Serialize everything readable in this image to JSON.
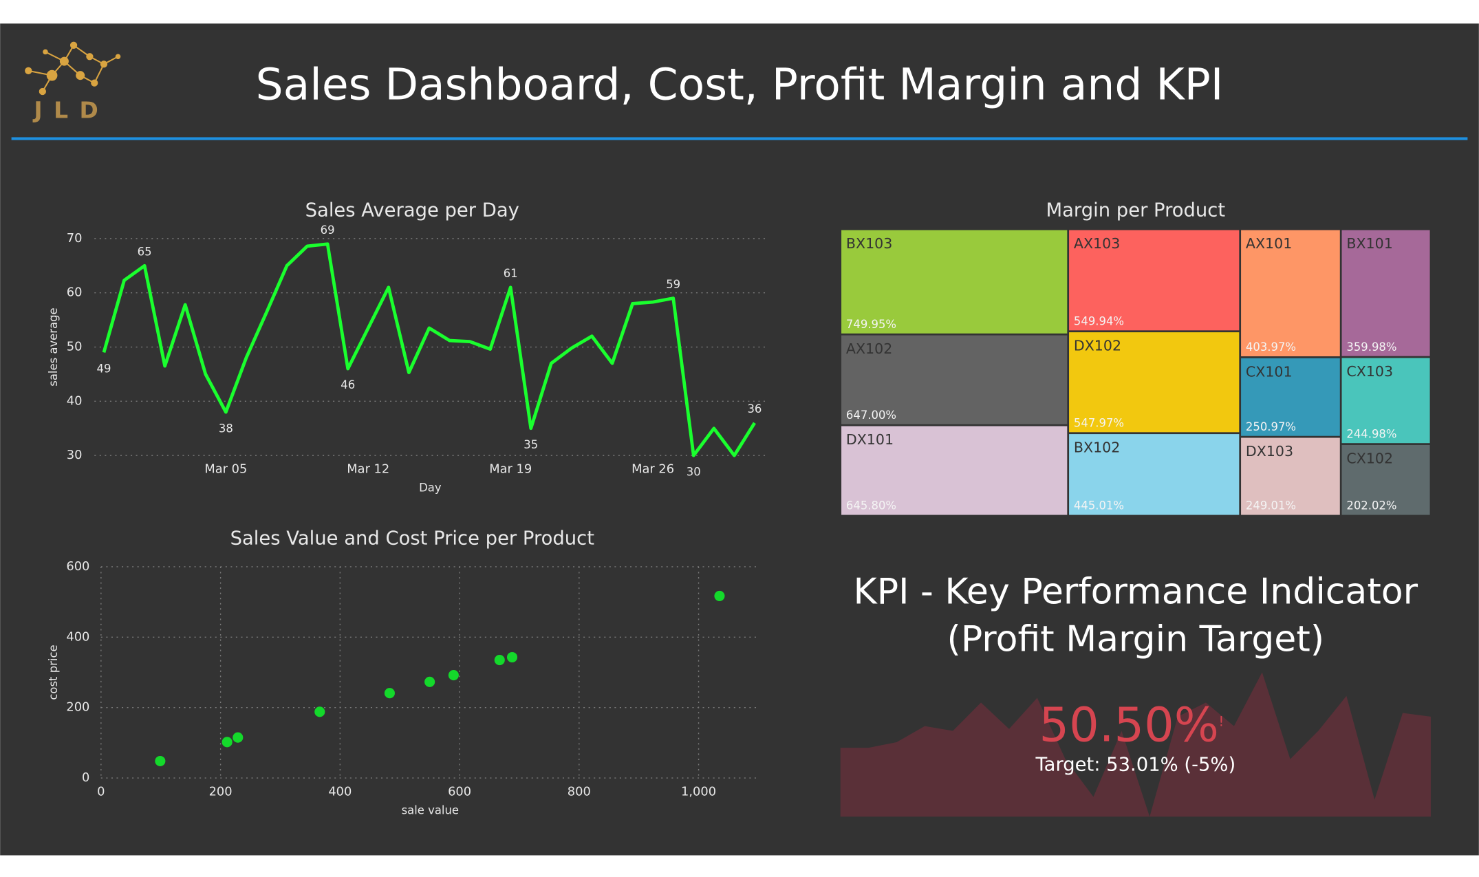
{
  "header": {
    "title": "Sales Dashboard, Cost, Profit Margin and KPI",
    "logo_text": "JLD"
  },
  "chart_data": [
    {
      "type": "line",
      "title": "Sales Average per Day",
      "x_label": "Day",
      "y_label": "sales average",
      "color": "#1aff2e",
      "categories": [
        null,
        null,
        null,
        null,
        null,
        null,
        "Mar 05",
        null,
        null,
        null,
        null,
        null,
        null,
        "Mar 12",
        null,
        null,
        null,
        null,
        null,
        null,
        "Mar 19",
        null,
        null,
        null,
        null,
        null,
        null,
        "Mar 26",
        null,
        null,
        null,
        null,
        null
      ],
      "values": [
        49,
        62.3,
        65,
        46.5,
        57.8,
        45,
        38,
        48,
        56.4,
        65,
        68.6,
        69,
        46,
        53.5,
        61,
        45.3,
        53.5,
        51.2,
        51,
        49.6,
        61,
        35,
        47,
        49.8,
        52,
        47,
        58,
        58.3,
        59,
        30,
        35,
        30,
        36
      ],
      "value_labels": [
        "49",
        null,
        "65",
        null,
        null,
        null,
        "38",
        null,
        null,
        null,
        null,
        "69",
        "46",
        null,
        null,
        null,
        null,
        null,
        null,
        null,
        "61",
        "35",
        null,
        null,
        null,
        null,
        null,
        null,
        "59",
        "30",
        null,
        null,
        "36"
      ],
      "ylim": [
        30,
        70
      ],
      "yticks": [
        30,
        40,
        50,
        60,
        70
      ],
      "grid": true
    },
    {
      "type": "scatter",
      "title": "Sales Value and Cost Price per Product",
      "x_label": "sale value",
      "y_label": "cost price",
      "color": "#14d92b",
      "x": [
        99,
        211,
        229,
        366,
        483,
        550,
        590,
        667,
        688,
        1035
      ],
      "values": [
        48,
        102,
        115,
        188,
        241,
        273,
        292,
        335,
        343,
        517
      ],
      "xlim": [
        0,
        1100
      ],
      "xticks": [
        0,
        200,
        400,
        600,
        800,
        {
          "value": 1000,
          "label": "1,000"
        }
      ],
      "ylim": [
        0,
        600
      ],
      "yticks": [
        0,
        200,
        400,
        600
      ],
      "grid": true
    },
    {
      "type": "treemap",
      "title": "Margin per Product",
      "categories": [
        "BX103",
        "AX102",
        "DX101",
        "AX103",
        "DX102",
        "BX102",
        "AX101",
        "CX101",
        "DX103",
        "BX101",
        "CX103",
        "CX102"
      ],
      "values": [
        749.95,
        647.0,
        645.8,
        549.94,
        547.97,
        445.01,
        403.97,
        250.97,
        249.01,
        359.98,
        244.98,
        202.02
      ],
      "value_labels": [
        "749.95%",
        "647.00%",
        "645.80%",
        "549.94%",
        "547.97%",
        "445.01%",
        "403.97%",
        "250.97%",
        "249.01%",
        "359.98%",
        "244.98%",
        "202.02%"
      ],
      "colors": [
        "#99ca3c",
        "#636363",
        "#d9c2d5",
        "#fd625e",
        "#f2c80f",
        "#8ad4eb",
        "#fe9666",
        "#3599b8",
        "#dfbfbf",
        "#a66999",
        "#4ac5bb",
        "#5f6b6d"
      ]
    },
    {
      "type": "kpi",
      "title": "KPI - Key Performance Indicator",
      "subtitle": "(Profit Margin Target)",
      "value_text": "50.50%",
      "alert": "!",
      "target_text": "Target: 53.01% (-5%)",
      "color": "#d64550",
      "trend_color": "#5a3038",
      "trend": [
        73,
        73,
        79,
        96,
        91,
        121,
        93,
        126,
        61,
        21,
        91,
        0,
        106,
        121,
        96,
        153,
        61,
        91,
        128,
        18,
        110,
        106
      ]
    }
  ]
}
